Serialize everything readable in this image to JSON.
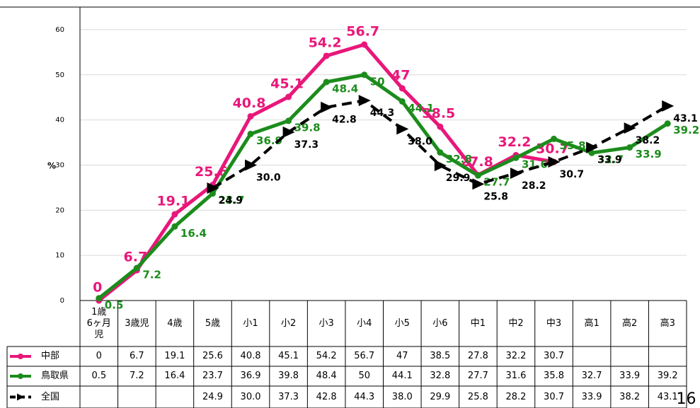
{
  "chart_data": {
    "type": "line",
    "y_label": "%",
    "page_number": "16",
    "categories": [
      "1歳\n6ヶ月\n児",
      "3歳児",
      "4歳",
      "5歳",
      "小1",
      "小2",
      "小3",
      "小4",
      "小5",
      "小6",
      "中1",
      "中2",
      "中3",
      "高1",
      "高2",
      "高3"
    ],
    "series": [
      {
        "name": "中部",
        "color": "#e8177a",
        "marker": "circle",
        "dashed": false,
        "values": [
          0,
          6.7,
          19.1,
          25.6,
          40.8,
          45.1,
          54.2,
          56.7,
          47,
          38.5,
          27.8,
          32.2,
          30.7,
          null,
          null,
          null
        ]
      },
      {
        "name": "鳥取県",
        "color": "#1c8c1c",
        "marker": "circle",
        "dashed": false,
        "values": [
          0.5,
          7.2,
          16.4,
          23.7,
          36.9,
          39.8,
          48.4,
          50,
          44.1,
          32.8,
          27.7,
          31.6,
          35.8,
          32.7,
          33.9,
          39.2
        ]
      },
      {
        "name": "全国",
        "color": "#000000",
        "marker": "triangle",
        "dashed": true,
        "values": [
          null,
          null,
          null,
          24.9,
          30.0,
          37.3,
          42.8,
          44.3,
          38.0,
          29.9,
          25.8,
          28.2,
          30.7,
          33.9,
          38.2,
          43.1
        ],
        "value_labels": [
          null,
          null,
          null,
          "24.9",
          "30.0",
          "37.3",
          "42.8",
          "44.3",
          "38.0",
          "29.9",
          "25.8",
          "28.2",
          "30.7",
          "33.9",
          "38.2",
          "43.1"
        ]
      }
    ],
    "ylim": [
      0,
      65
    ],
    "yticks": [
      0,
      10,
      20,
      30,
      40,
      50,
      60
    ],
    "grid": true
  }
}
